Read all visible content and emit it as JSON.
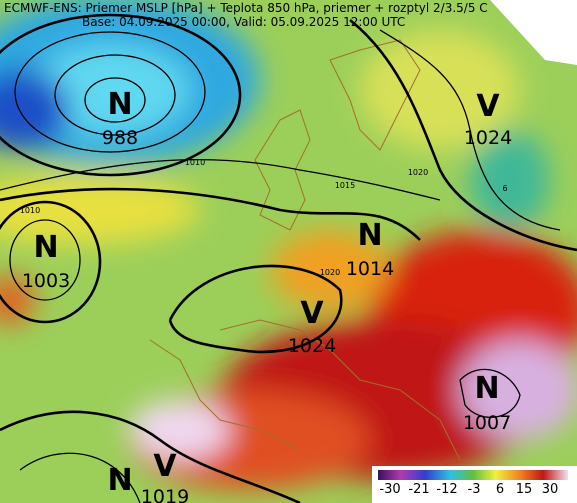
{
  "header": {
    "title": "ECMWF-ENS: Priemer MSLP [hPa] + Teplota 850 hPa, priemer + rozptyl 2/3.5/5 C",
    "subtitle": "Base: 04.09.2025 00:00, Valid: 05.09.2025 12:00 UTC"
  },
  "pressure_centers": [
    {
      "symbol": "N",
      "value": 988
    },
    {
      "symbol": "V",
      "value": 1024
    },
    {
      "symbol": "N",
      "value": 1003
    },
    {
      "symbol": "N",
      "value": 1014
    },
    {
      "symbol": "V",
      "value": 1024
    },
    {
      "symbol": "N",
      "value": 1007
    },
    {
      "symbol": "V",
      "value": 1019
    }
  ],
  "extra_symbols": [
    "N"
  ],
  "contour_labels": [
    "1010",
    "1010",
    "1015",
    "1020",
    "1020",
    "6"
  ],
  "legend": {
    "labels": [
      "-30",
      "-21",
      "-12",
      "-3",
      "6",
      "15",
      "30"
    ]
  }
}
